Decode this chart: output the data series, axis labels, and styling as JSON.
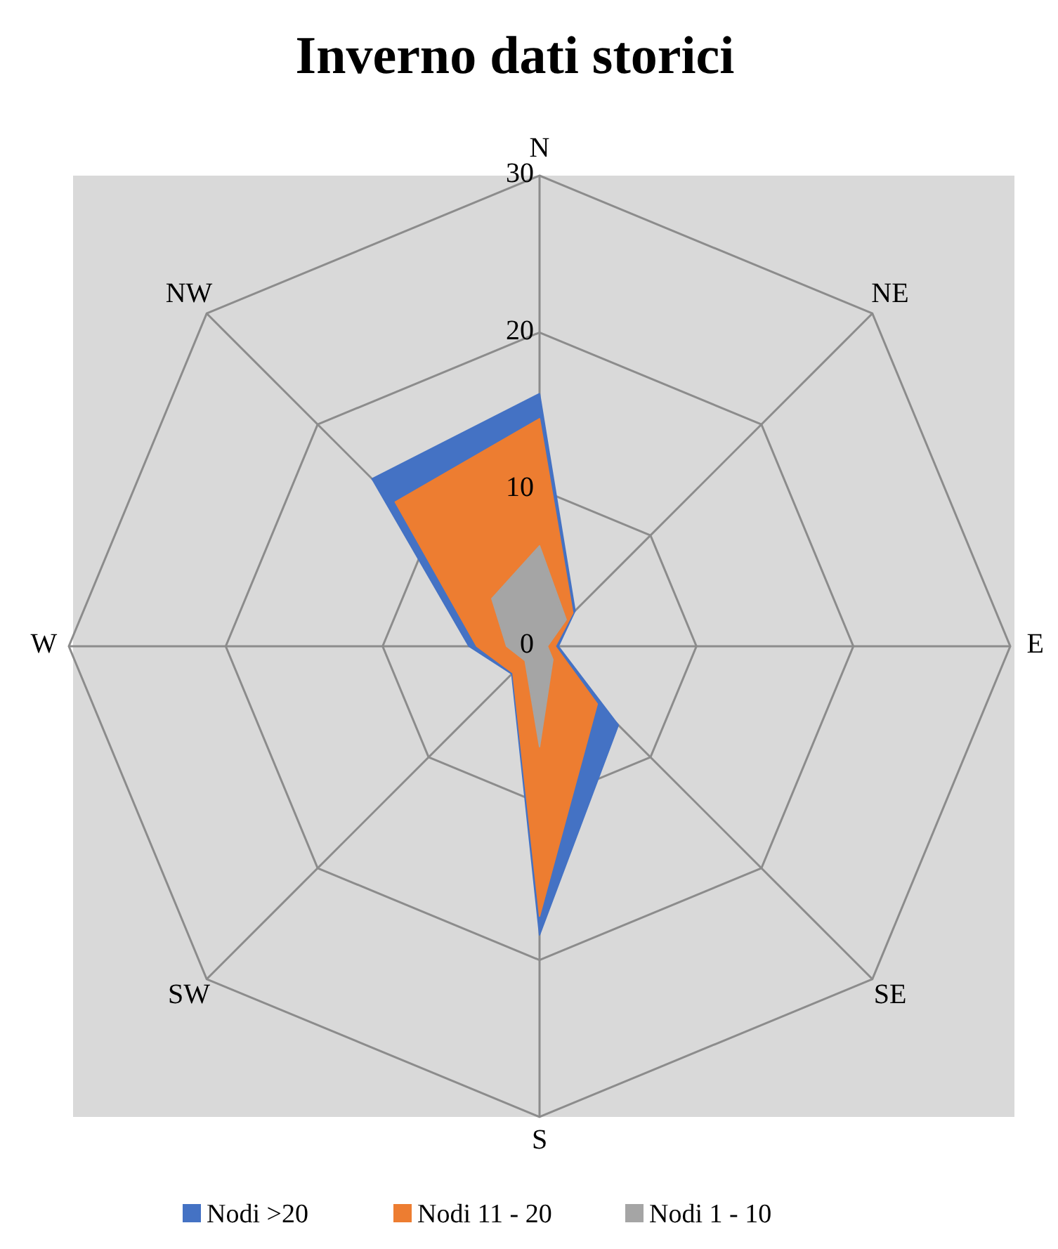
{
  "chart_data": {
    "type": "radar",
    "title": "Inverno dati storici",
    "categories": [
      "N",
      "NE",
      "E",
      "SE",
      "S",
      "SW",
      "W",
      "NW"
    ],
    "series": [
      {
        "name": "Nodi >20",
        "color": "#4472c4",
        "values": [
          16.1,
          3.2,
          1.2,
          7.1,
          18.4,
          2.5,
          4.5,
          15.1
        ]
      },
      {
        "name": "Nodi 11 - 20",
        "color": "#ed7d31",
        "values": [
          14.5,
          3.0,
          1.0,
          5.2,
          17.2,
          2.4,
          4.0,
          13.0
        ]
      },
      {
        "name": "Nodi 1 - 10",
        "color": "#a5a5a5",
        "values": [
          6.4,
          2.4,
          0.5,
          1.2,
          6.4,
          1.3,
          2.1,
          4.3
        ]
      }
    ],
    "ylim": [
      0,
      30
    ],
    "yticks": [
      0,
      10,
      20,
      30
    ],
    "grid": true,
    "legend": "bottom"
  }
}
